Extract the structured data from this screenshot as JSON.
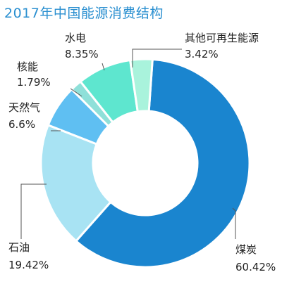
{
  "chart_data": {
    "type": "donut",
    "title": "2017年中国能源消费结构",
    "slices": [
      {
        "name": "煤炭",
        "value": 60.42,
        "label": "60.42%",
        "color": "#1a85cf"
      },
      {
        "name": "石油",
        "value": 19.42,
        "label": "19.42%",
        "color": "#a8e3f3"
      },
      {
        "name": "天然气",
        "value": 6.6,
        "label": "6.6%",
        "color": "#5fbff2"
      },
      {
        "name": "核能",
        "value": 1.79,
        "label": "1.79%",
        "color": "#8fe0d9"
      },
      {
        "name": "水电",
        "value": 8.35,
        "label": "8.35%",
        "color": "#5ee6cf"
      },
      {
        "name": "其他可再生能源",
        "value": 3.42,
        "label": "3.42%",
        "color": "#a9f3dc"
      }
    ]
  }
}
